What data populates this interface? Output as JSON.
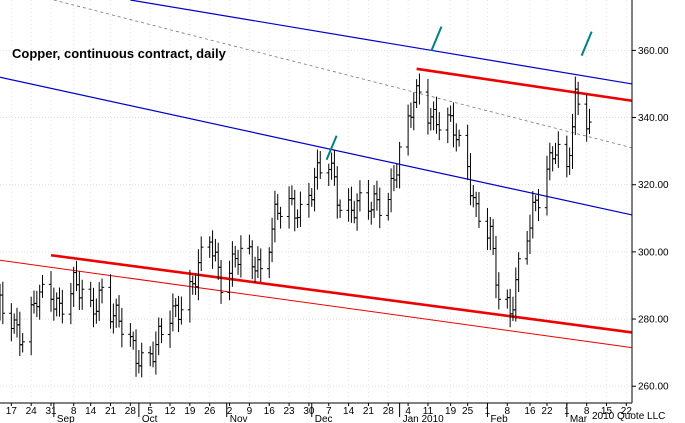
{
  "chart_data": {
    "type": "ohlc",
    "title": "Copper, continuous contract, daily",
    "credit": "2010 Quote LLC",
    "xlabel": "",
    "ylabel": "",
    "ylim": [
      255,
      375
    ],
    "xlim": [
      "2009-08-13",
      "2010-03-24"
    ],
    "y_ticks": [
      {
        "value": 260,
        "label": "260.00"
      },
      {
        "value": 280,
        "label": "280.00"
      },
      {
        "value": 300,
        "label": "300.00"
      },
      {
        "value": 320,
        "label": "320.00"
      },
      {
        "value": 340,
        "label": "340.00"
      },
      {
        "value": 360,
        "label": "360.00"
      }
    ],
    "x_day_ticks": [
      {
        "date": "2009-08-17",
        "label": "17"
      },
      {
        "date": "2009-08-24",
        "label": "24"
      },
      {
        "date": "2009-08-31",
        "label": "31"
      },
      {
        "date": "2009-09-08",
        "label": "8"
      },
      {
        "date": "2009-09-14",
        "label": "14"
      },
      {
        "date": "2009-09-21",
        "label": "21"
      },
      {
        "date": "2009-09-28",
        "label": "28"
      },
      {
        "date": "2009-10-05",
        "label": "5"
      },
      {
        "date": "2009-10-12",
        "label": "12"
      },
      {
        "date": "2009-10-19",
        "label": "19"
      },
      {
        "date": "2009-10-26",
        "label": "26"
      },
      {
        "date": "2009-11-02",
        "label": "2"
      },
      {
        "date": "2009-11-09",
        "label": "9"
      },
      {
        "date": "2009-11-16",
        "label": "16"
      },
      {
        "date": "2009-11-23",
        "label": "23"
      },
      {
        "date": "2009-11-30",
        "label": "30"
      },
      {
        "date": "2009-12-07",
        "label": "7"
      },
      {
        "date": "2009-12-14",
        "label": "14"
      },
      {
        "date": "2009-12-21",
        "label": "21"
      },
      {
        "date": "2009-12-28",
        "label": "28"
      },
      {
        "date": "2010-01-04",
        "label": "4"
      },
      {
        "date": "2010-01-11",
        "label": "11"
      },
      {
        "date": "2010-01-19",
        "label": "19"
      },
      {
        "date": "2010-01-25",
        "label": "25"
      },
      {
        "date": "2010-02-01",
        "label": "1"
      },
      {
        "date": "2010-02-08",
        "label": "8"
      },
      {
        "date": "2010-02-16",
        "label": "16"
      },
      {
        "date": "2010-02-22",
        "label": "22"
      },
      {
        "date": "2010-03-01",
        "label": "1"
      },
      {
        "date": "2010-03-08",
        "label": "8"
      },
      {
        "date": "2010-03-15",
        "label": "15"
      },
      {
        "date": "2010-03-22",
        "label": "22"
      }
    ],
    "x_month_ticks": [
      {
        "date": "2009-09-01",
        "label": "Sep"
      },
      {
        "date": "2009-10-01",
        "label": "Oct"
      },
      {
        "date": "2009-11-01",
        "label": "Nov"
      },
      {
        "date": "2009-12-01",
        "label": "Dec"
      },
      {
        "date": "2010-01-01",
        "label": "Jan 2010"
      },
      {
        "date": "2010-02-01",
        "label": "Feb"
      },
      {
        "date": "2010-03-01",
        "label": "Mar"
      }
    ],
    "trendlines": [
      {
        "color": "#0000cc",
        "width": 1.2,
        "dash": false,
        "start": {
          "date": "2009-08-13",
          "value": 352
        },
        "end": {
          "date": "2010-03-24",
          "value": 311
        }
      },
      {
        "color": "#0000cc",
        "width": 1.2,
        "dash": false,
        "start": {
          "date": "2009-09-28",
          "value": 375
        },
        "end": {
          "date": "2010-03-24",
          "value": 350
        }
      },
      {
        "color": "#777777",
        "width": 0.8,
        "dash": true,
        "start": {
          "date": "2009-09-01",
          "value": 375
        },
        "end": {
          "date": "2010-03-24",
          "value": 331
        }
      },
      {
        "color": "#ee0000",
        "width": 1.0,
        "dash": false,
        "start": {
          "date": "2009-08-13",
          "value": 297.5
        },
        "end": {
          "date": "2010-03-24",
          "value": 271.5
        }
      },
      {
        "color": "#ee0000",
        "width": 2.6,
        "dash": false,
        "start": {
          "date": "2009-08-31",
          "value": 299
        },
        "end": {
          "date": "2010-03-24",
          "value": 276
        }
      },
      {
        "color": "#ee0000",
        "width": 2.6,
        "dash": false,
        "start": {
          "date": "2010-01-07",
          "value": 354.5
        },
        "end": {
          "date": "2010-03-24",
          "value": 345
        }
      }
    ],
    "marker_ticks": [
      {
        "date": "2009-12-08",
        "value": 331
      },
      {
        "date": "2010-01-14",
        "value": 363.5
      },
      {
        "date": "2010-03-08",
        "value": 362
      }
    ],
    "ohlc_anchors": [
      [
        "2009-08-13",
        282
      ],
      [
        "2009-08-17",
        280
      ],
      [
        "2009-08-21",
        276
      ],
      [
        "2009-08-26",
        285
      ],
      [
        "2009-08-31",
        287
      ],
      [
        "2009-09-03",
        285
      ],
      [
        "2009-09-08",
        290
      ],
      [
        "2009-09-14",
        282
      ],
      [
        "2009-09-18",
        290
      ],
      [
        "2009-09-22",
        281
      ],
      [
        "2009-09-28",
        272
      ],
      [
        "2009-10-02",
        269
      ],
      [
        "2009-10-07",
        271
      ],
      [
        "2009-10-12",
        280
      ],
      [
        "2009-10-16",
        286
      ],
      [
        "2009-10-21",
        292
      ],
      [
        "2009-10-26",
        303
      ],
      [
        "2009-10-30",
        293
      ],
      [
        "2009-11-04",
        298
      ],
      [
        "2009-11-09",
        297
      ],
      [
        "2009-11-13",
        296
      ],
      [
        "2009-11-18",
        311
      ],
      [
        "2009-11-23",
        312
      ],
      [
        "2009-11-27",
        313
      ],
      [
        "2009-12-02",
        322
      ],
      [
        "2009-12-07",
        325
      ],
      [
        "2009-12-11",
        315
      ],
      [
        "2009-12-16",
        314
      ],
      [
        "2009-12-21",
        312
      ],
      [
        "2009-12-28",
        318
      ],
      [
        "2010-01-04",
        336
      ],
      [
        "2010-01-06",
        345
      ],
      [
        "2010-01-08",
        348
      ],
      [
        "2010-01-12",
        342
      ],
      [
        "2010-01-15",
        338
      ],
      [
        "2010-01-20",
        336
      ],
      [
        "2010-01-25",
        327
      ],
      [
        "2010-01-28",
        312
      ],
      [
        "2010-02-02",
        303
      ],
      [
        "2010-02-05",
        287
      ],
      [
        "2010-02-09",
        284
      ],
      [
        "2010-02-12",
        295
      ],
      [
        "2010-02-17",
        310
      ],
      [
        "2010-02-22",
        326
      ],
      [
        "2010-02-25",
        333
      ],
      [
        "2010-03-01",
        322
      ],
      [
        "2010-03-04",
        344
      ],
      [
        "2010-03-09",
        340
      ]
    ]
  }
}
